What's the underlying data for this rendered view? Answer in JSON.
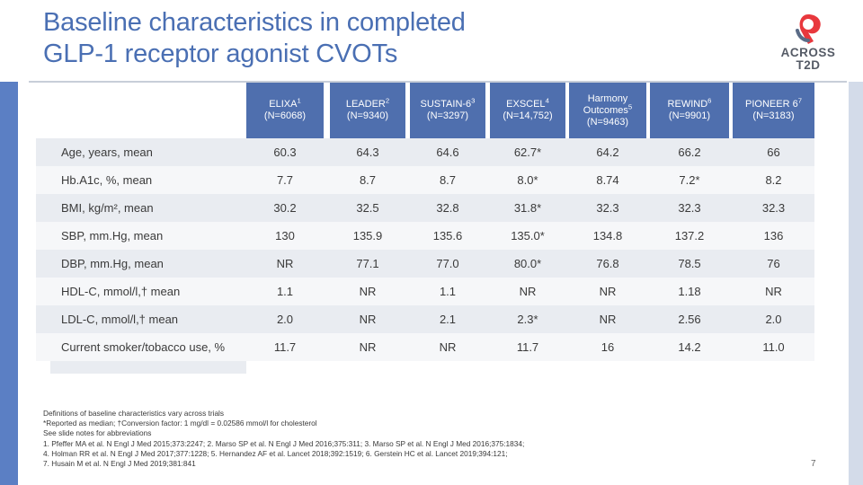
{
  "slide": {
    "title_line1": "Baseline characteristics in completed",
    "title_line2": "GLP‑1 receptor agonist CVOTs",
    "page_number": "7"
  },
  "logo": {
    "text_line1": "ACROSS",
    "text_line2": "T2D",
    "color_primary": "#e8383d",
    "color_secondary": "#5a6b86"
  },
  "table": {
    "header_color": "#4f6fae",
    "columns": [
      {
        "name": "ELIXA",
        "sup": "1",
        "n": "(N=6068)"
      },
      {
        "name": "LEADER",
        "sup": "2",
        "n": "(N=9340)"
      },
      {
        "name": "SUSTAIN-6",
        "sup": "3",
        "n": "(N=3297)"
      },
      {
        "name": "EXSCEL",
        "sup": "4",
        "n": "(N=14,752)"
      },
      {
        "name": "Harmony Outcomes",
        "sup": "5",
        "n": "(N=9463)"
      },
      {
        "name": "REWIND",
        "sup": "6",
        "n": "(N=9901)"
      },
      {
        "name": "PIONEER 6",
        "sup": "7",
        "n": "(N=3183)"
      }
    ],
    "rows": [
      {
        "label": "Age, years, mean",
        "values": [
          "60.3",
          "64.3",
          "64.6",
          "62.7*",
          "64.2",
          "66.2",
          "66"
        ]
      },
      {
        "label": "Hb.A1c, %, mean",
        "values": [
          "7.7",
          "8.7",
          "8.7",
          "8.0*",
          "8.74",
          "7.2*",
          "8.2"
        ]
      },
      {
        "label": "BMI, kg/m², mean",
        "values": [
          "30.2",
          "32.5",
          "32.8",
          "31.8*",
          "32.3",
          "32.3",
          "32.3"
        ]
      },
      {
        "label": "SBP, mm.Hg, mean",
        "values": [
          "130",
          "135.9",
          "135.6",
          "135.0*",
          "134.8",
          "137.2",
          "136"
        ]
      },
      {
        "label": "DBP, mm.Hg, mean",
        "values": [
          "NR",
          "77.1",
          "77.0",
          "80.0*",
          "76.8",
          "78.5",
          "76"
        ]
      },
      {
        "label": "HDL-C, mmol/l,† mean",
        "values": [
          "1.1",
          "NR",
          "1.1",
          "NR",
          "NR",
          "1.18",
          "NR"
        ]
      },
      {
        "label": "LDL-C, mmol/l,† mean",
        "values": [
          "2.0",
          "NR",
          "2.1",
          "2.3*",
          "NR",
          "2.56",
          "2.0"
        ]
      },
      {
        "label": "Current smoker/tobacco use, %",
        "values": [
          "11.7",
          "NR",
          "NR",
          "11.7",
          "16",
          "14.2",
          "11.0"
        ]
      }
    ]
  },
  "footnotes": [
    "Definitions of baseline characteristics vary across trials",
    "*Reported as median; †Conversion factor: 1 mg/dl = 0.02586 mmol/l for cholesterol",
    "See slide notes for abbreviations",
    "1. Pfeffer MA et al. N Engl J Med 2015;373:2247; 2. Marso SP et al. N Engl J Med 2016;375:311; 3. Marso SP et al. N Engl J Med 2016;375:1834;",
    "4. Holman RR et al. N Engl J Med 2017;377:1228; 5. Hernandez AF et al. Lancet 2018;392:1519; 6. Gerstein HC et al. Lancet 2019;394:121;",
    "7. Husain M et al. N Engl J Med 2019;381:841"
  ]
}
